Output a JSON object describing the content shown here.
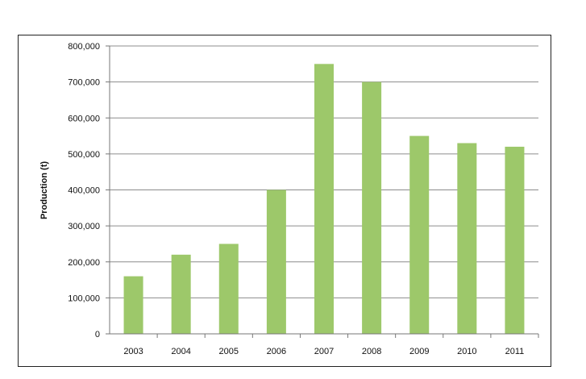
{
  "chart_data": {
    "type": "bar",
    "categories": [
      "2003",
      "2004",
      "2005",
      "2006",
      "2007",
      "2008",
      "2009",
      "2010",
      "2011"
    ],
    "values": [
      160000,
      220000,
      250000,
      400000,
      750000,
      700000,
      550000,
      530000,
      520000
    ],
    "title": "",
    "xlabel": "",
    "ylabel": "Production (t)",
    "ylim": [
      0,
      800000
    ],
    "yticks": [
      0,
      100000,
      200000,
      300000,
      400000,
      500000,
      600000,
      700000,
      800000
    ],
    "ytick_labels": [
      "0",
      "100,000",
      "200,000",
      "300,000",
      "400,000",
      "500,000",
      "600,000",
      "700,000",
      "800,000"
    ],
    "grid": true,
    "legend": false,
    "bar_color": "#9dc86a",
    "grid_color": "#8c8c8c"
  }
}
